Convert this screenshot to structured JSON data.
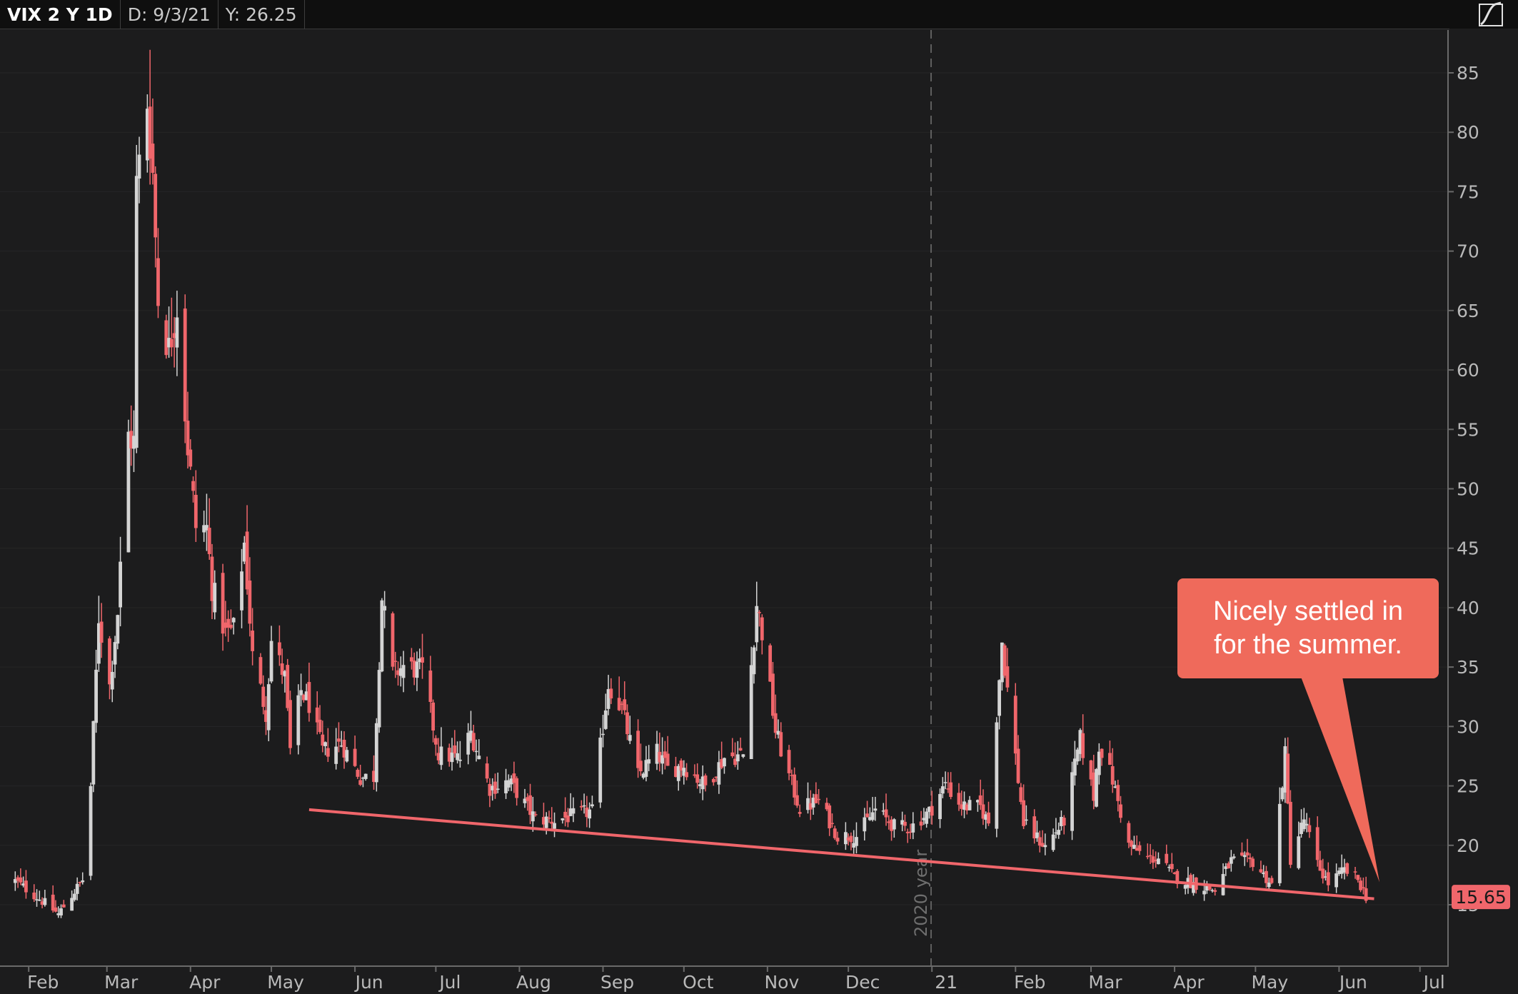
{
  "header": {
    "symbol": "VIX 2 Y 1D",
    "date_readout": "D: 9/3/21",
    "value_readout": "Y: 26.25"
  },
  "colors": {
    "background": "#1c1c1d",
    "up_candle": "#d4d4d4",
    "down_candle": "#f0666b",
    "trendline": "#f0666b",
    "annotation_bg": "#ef6a5b",
    "price_marker_bg": "#f0666b"
  },
  "icons": {
    "top_right": "chart-style-icon"
  },
  "annotation": {
    "text": "Nicely settled in\nfor the summer."
  },
  "chart_data": {
    "type": "candlestick",
    "title": "VIX 2 Y 1D",
    "x_axis_labels": [
      "Feb",
      "Mar",
      "Apr",
      "May",
      "Jun",
      "Jul",
      "Aug",
      "Sep",
      "Oct",
      "Nov",
      "Dec",
      "21",
      "Feb",
      "Mar",
      "Apr",
      "May",
      "Jun",
      "Jul"
    ],
    "y_ticks": [
      15,
      20,
      25,
      30,
      35,
      40,
      45,
      50,
      55,
      60,
      65,
      70,
      75,
      80,
      85
    ],
    "ylim": [
      10,
      88
    ],
    "year_separator": {
      "date": "2021-01-01",
      "label": "2020 year"
    },
    "last_price": 15.65,
    "last_price_label": "15.65",
    "trendline": {
      "start": {
        "date": "2020-05-15",
        "value": 23.0
      },
      "end": {
        "date": "2021-06-14",
        "value": 15.5
      }
    },
    "close_anchors": [
      [
        "2020-01-27",
        17.0
      ],
      [
        "2020-02-05",
        15.5
      ],
      [
        "2020-02-12",
        14.2
      ],
      [
        "2020-02-21",
        17.1
      ],
      [
        "2020-02-24",
        25.0
      ],
      [
        "2020-02-27",
        39.2
      ],
      [
        "2020-03-02",
        33.4
      ],
      [
        "2020-03-05",
        39.6
      ],
      [
        "2020-03-09",
        54.5
      ],
      [
        "2020-03-11",
        53.9
      ],
      [
        "2020-03-12",
        75.5
      ],
      [
        "2020-03-16",
        82.7
      ],
      [
        "2020-03-18",
        76.5
      ],
      [
        "2020-03-20",
        66.0
      ],
      [
        "2020-03-24",
        61.7
      ],
      [
        "2020-03-27",
        65.5
      ],
      [
        "2020-03-31",
        53.5
      ],
      [
        "2020-04-03",
        46.8
      ],
      [
        "2020-04-07",
        46.7
      ],
      [
        "2020-04-09",
        41.7
      ],
      [
        "2020-04-14",
        37.8
      ],
      [
        "2020-04-17",
        38.2
      ],
      [
        "2020-04-21",
        45.4
      ],
      [
        "2020-04-24",
        35.9
      ],
      [
        "2020-04-29",
        31.2
      ],
      [
        "2020-05-01",
        37.2
      ],
      [
        "2020-05-06",
        34.1
      ],
      [
        "2020-05-08",
        27.9
      ],
      [
        "2020-05-12",
        33.0
      ],
      [
        "2020-05-15",
        31.9
      ],
      [
        "2020-05-20",
        27.9
      ],
      [
        "2020-05-27",
        28.6
      ],
      [
        "2020-06-03",
        25.7
      ],
      [
        "2020-06-08",
        25.8
      ],
      [
        "2020-06-11",
        40.8
      ],
      [
        "2020-06-15",
        34.4
      ],
      [
        "2020-06-19",
        35.1
      ],
      [
        "2020-06-26",
        34.7
      ],
      [
        "2020-07-02",
        27.7
      ],
      [
        "2020-07-10",
        27.3
      ],
      [
        "2020-07-14",
        29.5
      ],
      [
        "2020-07-21",
        24.8
      ],
      [
        "2020-07-28",
        25.4
      ],
      [
        "2020-07-31",
        24.5
      ],
      [
        "2020-08-07",
        22.2
      ],
      [
        "2020-08-14",
        22.1
      ],
      [
        "2020-08-21",
        22.5
      ],
      [
        "2020-08-28",
        22.9
      ],
      [
        "2020-09-03",
        33.6
      ],
      [
        "2020-09-08",
        31.5
      ],
      [
        "2020-09-14",
        25.9
      ],
      [
        "2020-09-21",
        27.8
      ],
      [
        "2020-09-25",
        26.4
      ],
      [
        "2020-10-01",
        26.7
      ],
      [
        "2020-10-09",
        25.0
      ],
      [
        "2020-10-16",
        27.4
      ],
      [
        "2020-10-23",
        27.6
      ],
      [
        "2020-10-28",
        40.3
      ],
      [
        "2020-10-30",
        38.0
      ],
      [
        "2020-11-04",
        29.6
      ],
      [
        "2020-11-09",
        25.8
      ],
      [
        "2020-11-13",
        23.1
      ],
      [
        "2020-11-20",
        23.7
      ],
      [
        "2020-11-27",
        20.8
      ],
      [
        "2020-12-04",
        20.8
      ],
      [
        "2020-12-11",
        23.0
      ],
      [
        "2020-12-18",
        21.6
      ],
      [
        "2020-12-24",
        21.5
      ],
      [
        "2020-12-31",
        22.8
      ],
      [
        "2021-01-06",
        25.1
      ],
      [
        "2021-01-12",
        23.3
      ],
      [
        "2021-01-19",
        23.2
      ],
      [
        "2021-01-22",
        21.9
      ],
      [
        "2021-01-27",
        37.2
      ],
      [
        "2021-01-29",
        33.1
      ],
      [
        "2021-02-04",
        21.8
      ],
      [
        "2021-02-12",
        19.9
      ],
      [
        "2021-02-19",
        22.1
      ],
      [
        "2021-02-25",
        28.9
      ],
      [
        "2021-03-02",
        24.1
      ],
      [
        "2021-03-04",
        28.6
      ],
      [
        "2021-03-09",
        25.5
      ],
      [
        "2021-03-15",
        20.0
      ],
      [
        "2021-03-22",
        18.9
      ],
      [
        "2021-03-26",
        18.9
      ],
      [
        "2021-04-01",
        17.3
      ],
      [
        "2021-04-09",
        16.7
      ],
      [
        "2021-04-16",
        16.2
      ],
      [
        "2021-04-22",
        18.7
      ],
      [
        "2021-04-30",
        18.6
      ],
      [
        "2021-05-07",
        16.7
      ],
      [
        "2021-05-12",
        27.6
      ],
      [
        "2021-05-14",
        18.8
      ],
      [
        "2021-05-19",
        22.2
      ],
      [
        "2021-05-24",
        18.4
      ],
      [
        "2021-05-28",
        16.8
      ],
      [
        "2021-06-03",
        17.9
      ],
      [
        "2021-06-08",
        17.1
      ],
      [
        "2021-06-11",
        15.7
      ]
    ]
  }
}
